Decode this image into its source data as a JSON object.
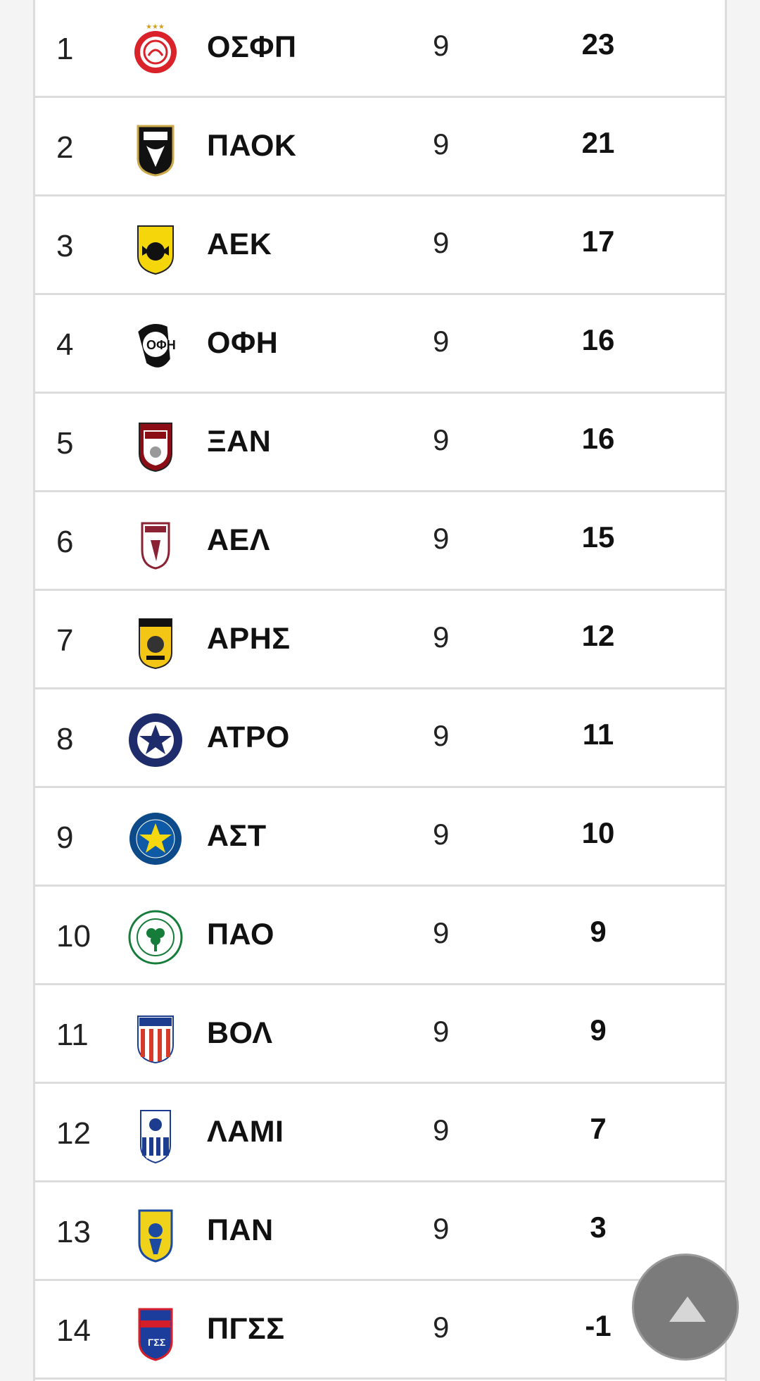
{
  "standings": [
    {
      "pos": "1",
      "team": "ΟΣΦΠ",
      "played": "9",
      "points": "23",
      "crest": "olympiacos-crest-icon"
    },
    {
      "pos": "2",
      "team": "ΠΑΟΚ",
      "played": "9",
      "points": "21",
      "crest": "paok-crest-icon"
    },
    {
      "pos": "3",
      "team": "ΑΕΚ",
      "played": "9",
      "points": "17",
      "crest": "aek-crest-icon"
    },
    {
      "pos": "4",
      "team": "ΟΦΗ",
      "played": "9",
      "points": "16",
      "crest": "ofi-crest-icon"
    },
    {
      "pos": "5",
      "team": "ΞΑΝ",
      "played": "9",
      "points": "16",
      "crest": "xanthi-crest-icon"
    },
    {
      "pos": "6",
      "team": "ΑΕΛ",
      "played": "9",
      "points": "15",
      "crest": "ael-crest-icon"
    },
    {
      "pos": "7",
      "team": "ΑΡΗΣ",
      "played": "9",
      "points": "12",
      "crest": "aris-crest-icon"
    },
    {
      "pos": "8",
      "team": "ΑΤΡΟ",
      "played": "9",
      "points": "11",
      "crest": "atromitos-crest-icon"
    },
    {
      "pos": "9",
      "team": "ΑΣΤ",
      "played": "9",
      "points": "10",
      "crest": "asteras-crest-icon"
    },
    {
      "pos": "10",
      "team": "ΠΑΟ",
      "played": "9",
      "points": "9",
      "crest": "panathinaikos-crest-icon"
    },
    {
      "pos": "11",
      "team": "ΒΟΛ",
      "played": "9",
      "points": "9",
      "crest": "volos-crest-icon"
    },
    {
      "pos": "12",
      "team": "ΛΑΜΙ",
      "played": "9",
      "points": "7",
      "crest": "lamia-crest-icon"
    },
    {
      "pos": "13",
      "team": "ΠΑΝ",
      "played": "9",
      "points": "3",
      "crest": "panetolikos-crest-icon"
    },
    {
      "pos": "14",
      "team": "ΠΓΣΣ",
      "played": "9",
      "points": "-1",
      "crest": "panionios-crest-icon"
    }
  ],
  "scroll_top": {
    "icon": "triangle-up-icon"
  }
}
